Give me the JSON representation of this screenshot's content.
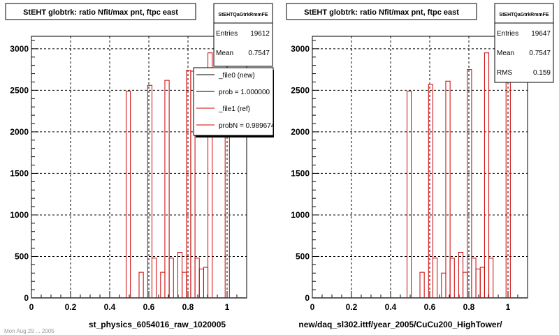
{
  "canvas": {
    "footer_text": "Mon Aug 29 ... 2005"
  },
  "chart_data": [
    {
      "type": "histogram",
      "title": "StEHT globtrk: ratio Nfit/max pnt, ftpc east",
      "xlabel": "st_physics_6054016_raw_1020005",
      "ylabel": "",
      "xlim": [
        0,
        1.1
      ],
      "ylim": [
        0,
        3150
      ],
      "grid": true,
      "x_ticks": [
        0,
        0.2,
        0.4,
        0.6,
        0.8,
        1
      ],
      "x_tick_labels": [
        "0",
        "0.2",
        "0.4",
        "0.6",
        "0.8",
        "1"
      ],
      "y_ticks": [
        0,
        500,
        1000,
        1500,
        2000,
        2500,
        3000
      ],
      "y_tick_labels": [
        "0",
        "500",
        "1000",
        "1500",
        "2000",
        "2500",
        "3000"
      ],
      "bin_width": 0.022,
      "stats": {
        "header": "StEHTQaGtrkRmmFE",
        "rows": [
          {
            "label": "Entries",
            "value": "19612"
          },
          {
            "label": "Mean",
            "value": "0.7547"
          }
        ]
      },
      "legend": {
        "position": "top-right",
        "entries": [
          {
            "label": "_file0 (new)",
            "color": "#000000"
          },
          {
            "label": "prob = 1.000000",
            "color": "#000000"
          },
          {
            "label": "_file1 (ref)",
            "color": "#cc0000"
          },
          {
            "label": "probN = 0.989674",
            "color": "#cc0000"
          }
        ]
      },
      "series": [
        {
          "color": "#cc0000",
          "bins": [
            {
              "x": 0.484,
              "y": 2490
            },
            {
              "x": 0.55,
              "y": 310
            },
            {
              "x": 0.594,
              "y": 2560
            },
            {
              "x": 0.616,
              "y": 480
            },
            {
              "x": 0.66,
              "y": 310
            },
            {
              "x": 0.682,
              "y": 2620
            },
            {
              "x": 0.704,
              "y": 480
            },
            {
              "x": 0.748,
              "y": 550
            },
            {
              "x": 0.77,
              "y": 310
            },
            {
              "x": 0.792,
              "y": 2740
            },
            {
              "x": 0.814,
              "y": 2730
            },
            {
              "x": 0.836,
              "y": 480
            },
            {
              "x": 0.858,
              "y": 350
            },
            {
              "x": 0.88,
              "y": 370
            },
            {
              "x": 0.902,
              "y": 2950
            },
            {
              "x": 0.99,
              "y": 2720
            }
          ]
        }
      ]
    },
    {
      "type": "histogram",
      "title": "StEHT globtrk: ratio Nfit/max pnt, ftpc east",
      "xlabel": "new/daq_sl302.ittf/year_2005/CuCu200_HighTower/",
      "ylabel": "",
      "xlim": [
        0,
        1.1
      ],
      "ylim": [
        0,
        3150
      ],
      "grid": true,
      "x_ticks": [
        0,
        0.2,
        0.4,
        0.6,
        0.8,
        1
      ],
      "x_tick_labels": [
        "0",
        "0.2",
        "0.4",
        "0.6",
        "0.8",
        "1"
      ],
      "y_ticks": [
        0,
        500,
        1000,
        1500,
        2000,
        2500,
        3000
      ],
      "y_tick_labels": [
        "0",
        "500",
        "1000",
        "1500",
        "2000",
        "2500",
        "3000"
      ],
      "bin_width": 0.022,
      "stats": {
        "header": "StEHTQaGtrkRmmFE",
        "rows": [
          {
            "label": "Entries",
            "value": "19647"
          },
          {
            "label": "Mean",
            "value": "0.7547"
          },
          {
            "label": "RMS",
            "value": "0.159"
          }
        ]
      },
      "legend": null,
      "series": [
        {
          "color": "#cc0000",
          "bins": [
            {
              "x": 0.484,
              "y": 2490
            },
            {
              "x": 0.55,
              "y": 310
            },
            {
              "x": 0.594,
              "y": 2570
            },
            {
              "x": 0.616,
              "y": 480
            },
            {
              "x": 0.66,
              "y": 300
            },
            {
              "x": 0.682,
              "y": 2610
            },
            {
              "x": 0.704,
              "y": 480
            },
            {
              "x": 0.748,
              "y": 550
            },
            {
              "x": 0.77,
              "y": 310
            },
            {
              "x": 0.792,
              "y": 2750
            },
            {
              "x": 0.814,
              "y": 480
            },
            {
              "x": 0.836,
              "y": 350
            },
            {
              "x": 0.858,
              "y": 370
            },
            {
              "x": 0.88,
              "y": 2950
            },
            {
              "x": 0.902,
              "y": 480
            },
            {
              "x": 0.99,
              "y": 2700
            }
          ]
        }
      ]
    }
  ]
}
